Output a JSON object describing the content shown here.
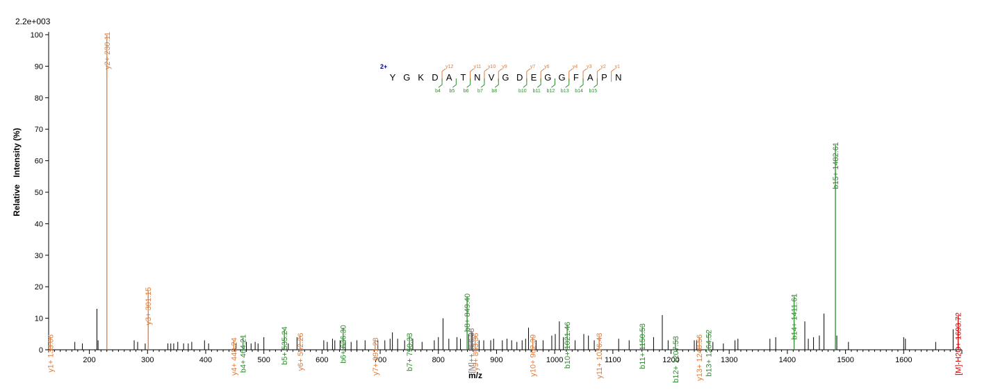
{
  "chart_data": {
    "type": "bar",
    "max_intensity_label": "2.2e+003",
    "xlabel": "m/z",
    "ylabel": "Relative   Intensity (%)",
    "xlim": [
      130,
      1700
    ],
    "ylim": [
      0,
      100
    ],
    "x_ticks": [
      200,
      300,
      400,
      500,
      600,
      700,
      800,
      900,
      1000,
      1100,
      1200,
      1300,
      1400,
      1500,
      1600
    ],
    "y_ticks": [
      0,
      10,
      20,
      30,
      40,
      50,
      60,
      70,
      80,
      90,
      100
    ],
    "grid": false,
    "colors": {
      "y": "#e07b39",
      "b": "#2e8b2e",
      "other": "#000000",
      "precursor": "#cc0000",
      "grey": "#777777",
      "charge": "#00008b"
    },
    "annotated_peaks": [
      {
        "mz": 133.06,
        "intensity": 4,
        "label": "y1+ 133.06",
        "ion": "y"
      },
      {
        "mz": 230.11,
        "intensity": 100,
        "label": "y2+ 230.11",
        "ion": "y"
      },
      {
        "mz": 301.15,
        "intensity": 19,
        "label": "y3+ 301.15",
        "ion": "y"
      },
      {
        "mz": 448.24,
        "intensity": 3,
        "label": "y4+ 448.24",
        "ion": "y"
      },
      {
        "mz": 464.21,
        "intensity": 4,
        "label": "b4+ 464.21",
        "ion": "b"
      },
      {
        "mz": 535.24,
        "intensity": 6.5,
        "label": "b5+ 535.24",
        "ion": "b"
      },
      {
        "mz": 562.26,
        "intensity": 4.5,
        "label": "y6+ 562.26",
        "ion": "y"
      },
      {
        "mz": 636.3,
        "intensity": 7,
        "label": "b6+ 636.30",
        "ion": "b"
      },
      {
        "mz": 691.28,
        "intensity": 3,
        "label": "y7+ 691.28",
        "ion": "y"
      },
      {
        "mz": 750.33,
        "intensity": 4.5,
        "label": "b7+ 750.33",
        "ion": "b"
      },
      {
        "mz": 849.4,
        "intensity": 17,
        "label": "b8+ 849.40",
        "ion": "b"
      },
      {
        "mz": 856.38,
        "intensity": 6,
        "label": "[M]++ 856.38",
        "ion": "grey"
      },
      {
        "mz": 863.36,
        "intensity": 4.5,
        "label": "y9+ 863.36",
        "ion": "y"
      },
      {
        "mz": 962.39,
        "intensity": 4,
        "label": "y10+ 962.39",
        "ion": "y"
      },
      {
        "mz": 1021.46,
        "intensity": 8,
        "label": "b10+ 1021.46",
        "ion": "b"
      },
      {
        "mz": 1076.43,
        "intensity": 4.5,
        "label": "y11+ 1076.43",
        "ion": "y"
      },
      {
        "mz": 1150.53,
        "intensity": 7.5,
        "label": "b11+ 1150.53",
        "ion": "b"
      },
      {
        "mz": 1207.53,
        "intensity": 3.5,
        "label": "b12+ 1207.53",
        "ion": "b"
      },
      {
        "mz": 1248.56,
        "intensity": 4,
        "label": "y13+ 1248.56",
        "ion": "y"
      },
      {
        "mz": 1264.52,
        "intensity": 5.5,
        "label": "b13+ 1264.52",
        "ion": "b"
      },
      {
        "mz": 1411.61,
        "intensity": 17,
        "label": "b14+ 1411.61",
        "ion": "b"
      },
      {
        "mz": 1482.61,
        "intensity": 65,
        "label": "b15+ 1482.61",
        "ion": "b"
      },
      {
        "mz": 1693.72,
        "intensity": 11,
        "label": "[M]-H2O+ 1693.72",
        "ion": "precursor"
      }
    ],
    "partial_labels": [
      {
        "mz": 741.0,
        "intensity": 4,
        "text": "b15+ 741.3",
        "ion": "b"
      },
      {
        "mz": 849.4,
        "intensity": 17,
        "text": "b8  849.40",
        "ion": "b"
      }
    ],
    "peaks": [
      {
        "mz": 175,
        "intensity": 2.5
      },
      {
        "mz": 188,
        "intensity": 2
      },
      {
        "mz": 213,
        "intensity": 13
      },
      {
        "mz": 215,
        "intensity": 3
      },
      {
        "mz": 277,
        "intensity": 3
      },
      {
        "mz": 283,
        "intensity": 2.5
      },
      {
        "mz": 296,
        "intensity": 2
      },
      {
        "mz": 335,
        "intensity": 2
      },
      {
        "mz": 340,
        "intensity": 2
      },
      {
        "mz": 345,
        "intensity": 2
      },
      {
        "mz": 352,
        "intensity": 2.5
      },
      {
        "mz": 362,
        "intensity": 2
      },
      {
        "mz": 370,
        "intensity": 2
      },
      {
        "mz": 376,
        "intensity": 2.5
      },
      {
        "mz": 398,
        "intensity": 3
      },
      {
        "mz": 405,
        "intensity": 2
      },
      {
        "mz": 452,
        "intensity": 2
      },
      {
        "mz": 470,
        "intensity": 2.5
      },
      {
        "mz": 478,
        "intensity": 2
      },
      {
        "mz": 485,
        "intensity": 2.5
      },
      {
        "mz": 490,
        "intensity": 2
      },
      {
        "mz": 500,
        "intensity": 4
      },
      {
        "mz": 542,
        "intensity": 2
      },
      {
        "mz": 557,
        "intensity": 4
      },
      {
        "mz": 603,
        "intensity": 3
      },
      {
        "mz": 609,
        "intensity": 2.5
      },
      {
        "mz": 618,
        "intensity": 3.5
      },
      {
        "mz": 622,
        "intensity": 3
      },
      {
        "mz": 631,
        "intensity": 3
      },
      {
        "mz": 640,
        "intensity": 3
      },
      {
        "mz": 650,
        "intensity": 2.5
      },
      {
        "mz": 660,
        "intensity": 3
      },
      {
        "mz": 674,
        "intensity": 3
      },
      {
        "mz": 696,
        "intensity": 3
      },
      {
        "mz": 708,
        "intensity": 3
      },
      {
        "mz": 717,
        "intensity": 3.5
      },
      {
        "mz": 721,
        "intensity": 5.5
      },
      {
        "mz": 730,
        "intensity": 3.5
      },
      {
        "mz": 742,
        "intensity": 3
      },
      {
        "mz": 756,
        "intensity": 3.5
      },
      {
        "mz": 772,
        "intensity": 2.5
      },
      {
        "mz": 793,
        "intensity": 3
      },
      {
        "mz": 800,
        "intensity": 4
      },
      {
        "mz": 808,
        "intensity": 10
      },
      {
        "mz": 818,
        "intensity": 3.5
      },
      {
        "mz": 832,
        "intensity": 4
      },
      {
        "mz": 838,
        "intensity": 3.5
      },
      {
        "mz": 852,
        "intensity": 5
      },
      {
        "mz": 858,
        "intensity": 5.5
      },
      {
        "mz": 870,
        "intensity": 3
      },
      {
        "mz": 878,
        "intensity": 3
      },
      {
        "mz": 890,
        "intensity": 3
      },
      {
        "mz": 895,
        "intensity": 3.5
      },
      {
        "mz": 910,
        "intensity": 3
      },
      {
        "mz": 918,
        "intensity": 3.5
      },
      {
        "mz": 926,
        "intensity": 3
      },
      {
        "mz": 935,
        "intensity": 2.5
      },
      {
        "mz": 944,
        "intensity": 3
      },
      {
        "mz": 950,
        "intensity": 3.5
      },
      {
        "mz": 955,
        "intensity": 7
      },
      {
        "mz": 968,
        "intensity": 3
      },
      {
        "mz": 980,
        "intensity": 3
      },
      {
        "mz": 995,
        "intensity": 4.5
      },
      {
        "mz": 1001,
        "intensity": 5
      },
      {
        "mz": 1008,
        "intensity": 9
      },
      {
        "mz": 1015,
        "intensity": 4
      },
      {
        "mz": 1035,
        "intensity": 3
      },
      {
        "mz": 1050,
        "intensity": 5
      },
      {
        "mz": 1058,
        "intensity": 4.5
      },
      {
        "mz": 1068,
        "intensity": 3
      },
      {
        "mz": 1110,
        "intensity": 3.5
      },
      {
        "mz": 1128,
        "intensity": 3
      },
      {
        "mz": 1170,
        "intensity": 4
      },
      {
        "mz": 1185,
        "intensity": 11
      },
      {
        "mz": 1195,
        "intensity": 3
      },
      {
        "mz": 1240,
        "intensity": 3
      },
      {
        "mz": 1244,
        "intensity": 3
      },
      {
        "mz": 1272,
        "intensity": 2.5
      },
      {
        "mz": 1290,
        "intensity": 2
      },
      {
        "mz": 1310,
        "intensity": 3
      },
      {
        "mz": 1315,
        "intensity": 3.5
      },
      {
        "mz": 1370,
        "intensity": 3.5
      },
      {
        "mz": 1380,
        "intensity": 4
      },
      {
        "mz": 1430,
        "intensity": 9
      },
      {
        "mz": 1436,
        "intensity": 3.5
      },
      {
        "mz": 1445,
        "intensity": 4
      },
      {
        "mz": 1455,
        "intensity": 4.5
      },
      {
        "mz": 1463,
        "intensity": 11.5
      },
      {
        "mz": 1485,
        "intensity": 4.5
      },
      {
        "mz": 1505,
        "intensity": 2.5
      },
      {
        "mz": 1600,
        "intensity": 4
      },
      {
        "mz": 1603,
        "intensity": 3.5
      },
      {
        "mz": 1655,
        "intensity": 2.5
      },
      {
        "mz": 1685,
        "intensity": 6.5
      }
    ],
    "sequence": {
      "charge": "2+",
      "residues": [
        "Y",
        "G",
        "K",
        "D",
        "A",
        "T",
        "N",
        "V",
        "G",
        "D",
        "E",
        "G",
        "G",
        "F",
        "A",
        "P",
        "N"
      ],
      "y_ions": [
        {
          "after": 4,
          "label": "y12"
        },
        {
          "after": 6,
          "label": "y11"
        },
        {
          "after": 7,
          "label": "y10"
        },
        {
          "after": 8,
          "label": "y9"
        },
        {
          "after": 10,
          "label": "y7"
        },
        {
          "after": 11,
          "label": "y6"
        },
        {
          "after": 13,
          "label": "y4"
        },
        {
          "after": 14,
          "label": "y3"
        },
        {
          "after": 15,
          "label": "y2"
        },
        {
          "after": 16,
          "label": "y1"
        }
      ],
      "b_ions": [
        {
          "after": 4,
          "label": "b4"
        },
        {
          "after": 5,
          "label": "b5"
        },
        {
          "after": 6,
          "label": "b6"
        },
        {
          "after": 7,
          "label": "b7"
        },
        {
          "after": 8,
          "label": "b8"
        },
        {
          "after": 10,
          "label": "b10"
        },
        {
          "after": 11,
          "label": "b11"
        },
        {
          "after": 12,
          "label": "b12"
        },
        {
          "after": 13,
          "label": "b13"
        },
        {
          "after": 14,
          "label": "b14"
        },
        {
          "after": 15,
          "label": "b15"
        }
      ]
    }
  }
}
